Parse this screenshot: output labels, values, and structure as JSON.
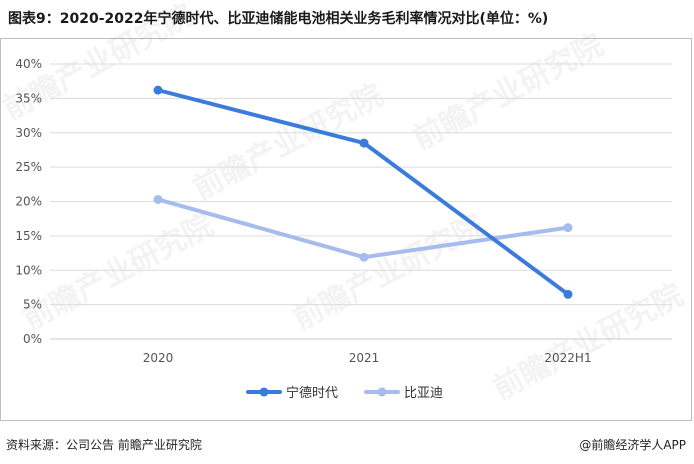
{
  "header": {
    "title": "图表9：2020-2022年宁德时代、比亚迪储能电池相关业务毛利率情况对比(单位：%)"
  },
  "footer": {
    "source": "资料来源：公司公告 前瞻产业研究院",
    "brand": "@前瞻经济学人APP"
  },
  "watermark": {
    "text": "前瞻产业研究院"
  },
  "chart_data": {
    "type": "line",
    "title": "",
    "xlabel": "",
    "ylabel": "",
    "categories": [
      "2020",
      "2021",
      "2022H1"
    ],
    "ylim": [
      0,
      40
    ],
    "yticks": [
      "0%",
      "5%",
      "10%",
      "15%",
      "20%",
      "25%",
      "30%",
      "35%",
      "40%"
    ],
    "grid": true,
    "legend_position": "bottom",
    "series": [
      {
        "name": "宁德时代",
        "values": [
          36.2,
          28.5,
          6.5
        ],
        "color": "#3a7bdc"
      },
      {
        "name": "比亚迪",
        "values": [
          20.3,
          11.9,
          16.2
        ],
        "color": "#a6bcee"
      }
    ]
  }
}
